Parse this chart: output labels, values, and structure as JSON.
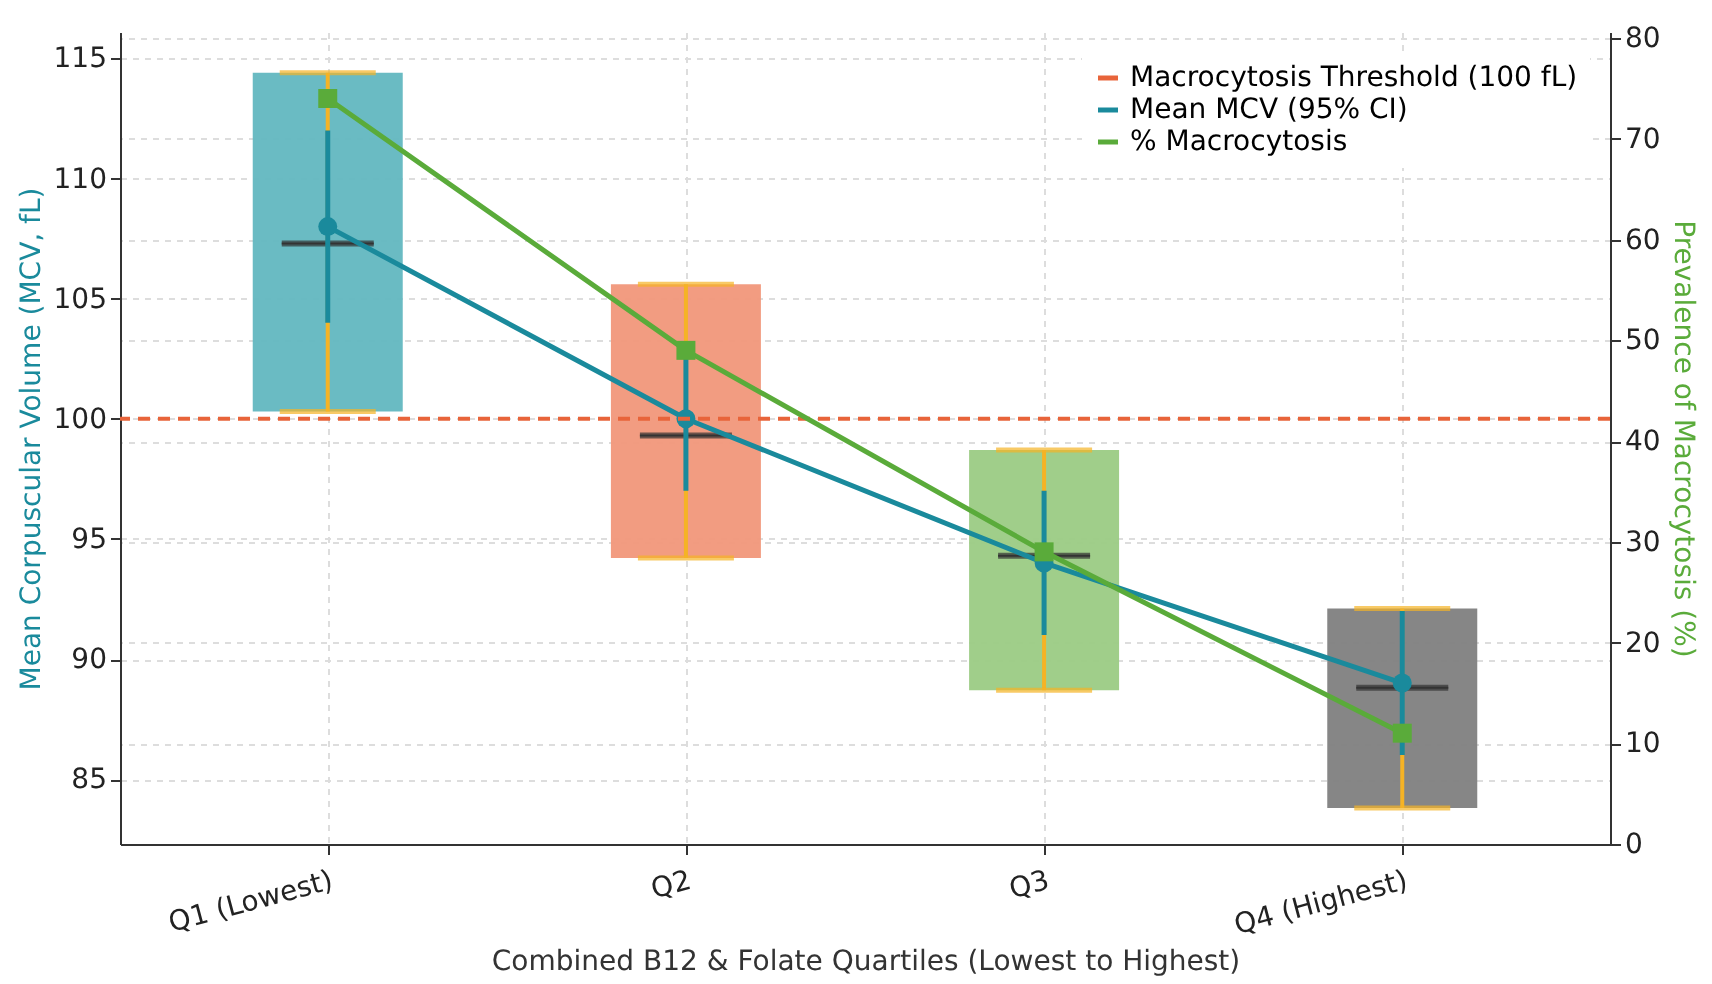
{
  "chart_data": {
    "type": "box",
    "xlabel": "Combined B12 & Folate Quartiles (Lowest to Highest)",
    "ylabel": "Mean Corpuscular Volume (MCV, fL)",
    "y2label": "Prevalence of Macrocytosis (%)",
    "categories": [
      "Q1 (Lowest)",
      "Q2",
      "Q3",
      "Q4 (Highest)"
    ],
    "series": [
      {
        "type": "bar",
        "base": [
          100.3,
          94.2,
          88.7,
          83.8
        ],
        "values": [
          14.1,
          11.4,
          10.0,
          8.3
        ],
        "colors": [
          "#62b7c0",
          "#f1977a",
          "#9bcb84",
          "#808080"
        ]
      },
      {
        "color": "#333333",
        "boxes": [
          {
            "low": 100.3,
            "q1": 107.3,
            "median": 107.3,
            "q3": 107.3,
            "high": 114.4
          },
          {
            "low": 94.2,
            "q1": 99.3,
            "median": 99.3,
            "q3": 99.3,
            "high": 105.6
          },
          {
            "low": 88.7,
            "q1": 94.3,
            "median": 94.3,
            "q3": 94.3,
            "high": 98.7
          },
          {
            "low": 83.8,
            "q1": 88.8,
            "median": 88.8,
            "q3": 88.8,
            "high": 92.1
          }
        ]
      },
      {
        "type": "line",
        "name": "Mean MCV (95% CI)",
        "color": "#1a8a9c",
        "marker": "circle",
        "line_style": "solid",
        "values": [
          108,
          100,
          94,
          89
        ],
        "errors": [
          [
            104,
            112
          ],
          [
            97,
            103
          ],
          [
            91,
            97
          ],
          [
            86,
            92
          ]
        ]
      },
      {
        "type": "line",
        "name": "% Macrocytosis",
        "color": "#5aab3a",
        "marker": "square",
        "line_style": "solid",
        "axis": "y2",
        "values": [
          74,
          49,
          29,
          11
        ]
      }
    ],
    "ylim": [
      82.3,
      116.1
    ],
    "yticks": [
      85,
      90,
      95,
      100,
      105,
      110,
      115
    ],
    "y2lim": [
      0,
      80.6
    ],
    "y2ticks": [
      0,
      10,
      20,
      30,
      40,
      50,
      60,
      70,
      80
    ],
    "ref_lines": [
      {
        "axis": "y",
        "value": 100,
        "label": "Macrocytosis Threshold (100 fL)",
        "color": "#e8643a",
        "line_style": "dashed"
      }
    ],
    "grid": true,
    "legend": "top right"
  }
}
